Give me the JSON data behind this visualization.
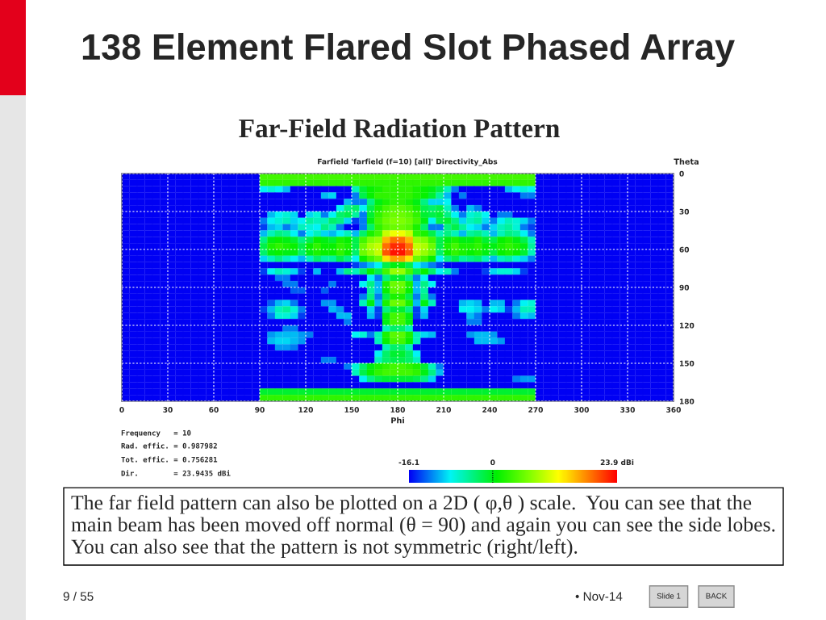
{
  "chart_data": {
    "type": "heatmap",
    "title": "138 Element Flared Slot Phased Array",
    "subtitle": "Far-Field Radiation Pattern",
    "xlabel": "Phi",
    "ylabel": "Theta",
    "annotations": [
      "Farfield 'farfield (f=10) [all]' Directivity_Abs",
      "Frequency   = 10",
      "Rad. effic. = 0.987982",
      "Tot. effic. = 0.756281",
      "Dir.        = 23.9435 dBi",
      "The far field pattern can also be plotted on a 2D ( φ,θ ) scale.  You can see that the\nmain beam has been moved off normal (θ = 90) and again you can see the side lobes.\nYou can also see that the pattern is not symmetric (right/left).",
      "9 / 55",
      "• Nov-14",
      "Slide 1",
      "BACK"
    ],
    "xlim": [
      0,
      360
    ],
    "xticks": [
      0,
      30,
      60,
      90,
      120,
      150,
      180,
      210,
      240,
      270,
      300,
      330,
      360
    ],
    "ylim": [
      180,
      0
    ],
    "yticks": [
      0,
      30,
      60,
      90,
      120,
      150,
      180
    ],
    "grid": true,
    "clim": [
      -16.1,
      23.9
    ],
    "cticks": [
      -16.1,
      0,
      {
        "value": 23.9,
        "label": "23.9 dBi"
      }
    ],
    "cells": [
      [
        -16,
        -16,
        -16,
        -16,
        -16,
        -16,
        -16,
        -16,
        -16,
        -16,
        -16,
        -16,
        -16,
        -16,
        -16,
        -16,
        -16,
        -16,
        4,
        4,
        4,
        4,
        4,
        4,
        4,
        4,
        4,
        4,
        4,
        4,
        4,
        4,
        4,
        4,
        4,
        4,
        4,
        4,
        4,
        4,
        4,
        4,
        4,
        4,
        4,
        4,
        4,
        4,
        4,
        4,
        4,
        4,
        4,
        4,
        -16,
        -16,
        -16,
        -16,
        -16,
        -16,
        -16,
        -16,
        -16,
        -16,
        -16,
        -16,
        -16,
        -16,
        -16,
        -16,
        -16,
        -16
      ],
      [
        -16,
        -16,
        -16,
        -16,
        -16,
        -16,
        -16,
        -16,
        -16,
        -16,
        -16,
        -16,
        -16,
        -16,
        -16,
        -16,
        -16,
        -16,
        3,
        3,
        3,
        3,
        3,
        3,
        3,
        3,
        3,
        3,
        3,
        3,
        3,
        3,
        3,
        3,
        3,
        3,
        3,
        3,
        3,
        3,
        3,
        3,
        3,
        3,
        3,
        3,
        3,
        3,
        3,
        3,
        3,
        3,
        3,
        3,
        -16,
        -16,
        -16,
        -16,
        -16,
        -16,
        -16,
        -16,
        -16,
        -16,
        -16,
        -16,
        -16,
        -16,
        -16,
        -16,
        -16,
        -16
      ],
      [
        -16,
        -16,
        -16,
        -16,
        -16,
        -16,
        -16,
        -16,
        -16,
        -16,
        -16,
        -16,
        -16,
        -16,
        -16,
        -16,
        -16,
        -16,
        -8,
        -7,
        -8,
        -10,
        -16,
        -16,
        -16,
        -16,
        -16,
        -16,
        -16,
        -16,
        -6,
        -1,
        1,
        2,
        3,
        3,
        3,
        3,
        2,
        1,
        0,
        -2,
        -6,
        -12,
        -16,
        -16,
        -16,
        -16,
        -16,
        -16,
        -10,
        -8,
        -7,
        -8,
        -16,
        -16,
        -16,
        -16,
        -16,
        -16,
        -16,
        -16,
        -16,
        -16,
        -16,
        -16,
        -16,
        -16,
        -16,
        -16,
        -16,
        -16
      ],
      [
        -16,
        -16,
        -16,
        -16,
        -16,
        -16,
        -16,
        -16,
        -16,
        -16,
        -16,
        -16,
        -16,
        -16,
        -16,
        -16,
        -16,
        -16,
        -16,
        -16,
        -16,
        -16,
        -16,
        -16,
        -16,
        -16,
        -10,
        -9,
        -16,
        -16,
        -12,
        -2,
        1,
        3,
        3,
        3,
        3,
        3,
        2,
        1,
        -1,
        -5,
        -10,
        -16,
        -12,
        -16,
        -16,
        -16,
        -16,
        -16,
        -16,
        -16,
        -12,
        -12,
        -16,
        -16,
        -16,
        -16,
        -16,
        -16,
        -16,
        -16,
        -16,
        -16,
        -16,
        -16,
        -16,
        -16,
        -16,
        -16,
        -16,
        -16
      ],
      [
        -16,
        -16,
        -16,
        -16,
        -16,
        -16,
        -16,
        -16,
        -16,
        -16,
        -16,
        -16,
        -16,
        -16,
        -16,
        -16,
        -16,
        -16,
        -16,
        -16,
        -16,
        -16,
        -16,
        -16,
        -16,
        -16,
        -16,
        -16,
        -16,
        -10,
        -12,
        -12,
        -4,
        0,
        2,
        3,
        3,
        2,
        0,
        -4,
        -9,
        -9,
        -8,
        -16,
        -16,
        -16,
        -16,
        -16,
        -16,
        -16,
        -16,
        -16,
        -16,
        -16,
        -16,
        -16,
        -16,
        -16,
        -16,
        -16,
        -16,
        -16,
        -16,
        -16,
        -16,
        -16,
        -16,
        -16,
        -16,
        -16,
        -16,
        -16
      ],
      [
        -16,
        -16,
        -16,
        -16,
        -16,
        -16,
        -16,
        -16,
        -16,
        -16,
        -16,
        -16,
        -16,
        -16,
        -16,
        -16,
        -16,
        -16,
        -16,
        -16,
        -16,
        -16,
        -16,
        -16,
        -16,
        -16,
        -16,
        -16,
        -8,
        -4,
        -3,
        -8,
        -2,
        2,
        4,
        5,
        5,
        4,
        2,
        -2,
        -3,
        -2,
        -6,
        -12,
        -16,
        -10,
        -12,
        -16,
        -16,
        -16,
        -16,
        -16,
        -16,
        -16,
        -16,
        -16,
        -16,
        -16,
        -16,
        -16,
        -16,
        -16,
        -16,
        -16,
        -16,
        -16,
        -16,
        -16,
        -16,
        -16,
        -16,
        -16
      ],
      [
        -16,
        -16,
        -16,
        -16,
        -16,
        -16,
        -16,
        -16,
        -16,
        -16,
        -16,
        -16,
        -16,
        -16,
        -16,
        -16,
        -16,
        -16,
        -16,
        -10,
        -8,
        -7,
        -9,
        -16,
        -9,
        -7,
        -12,
        -8,
        -3,
        -2,
        -5,
        -12,
        -1,
        3,
        5,
        6,
        6,
        5,
        3,
        -1,
        -2,
        -1,
        -4,
        -8,
        -12,
        -7,
        -6,
        -8,
        -16,
        -12,
        -12,
        -16,
        -16,
        -16,
        -16,
        -16,
        -16,
        -16,
        -16,
        -16,
        -16,
        -16,
        -16,
        -16,
        -16,
        -16,
        -16,
        -16,
        -16,
        -16,
        -16,
        -16
      ],
      [
        -16,
        -16,
        -16,
        -16,
        -16,
        -16,
        -16,
        -16,
        -16,
        -16,
        -16,
        -16,
        -16,
        -16,
        -16,
        -16,
        -16,
        -16,
        -12,
        -8,
        -7,
        -6,
        -9,
        -8,
        -5,
        -6,
        -6,
        -3,
        -4,
        -9,
        -14,
        -12,
        0,
        4,
        6,
        7,
        7,
        6,
        4,
        0,
        -8,
        -2,
        -1,
        -4,
        -9,
        -6,
        -5,
        -9,
        -12,
        -8,
        -6,
        -7,
        -9,
        -12,
        -16,
        -16,
        -16,
        -16,
        -16,
        -16,
        -16,
        -16,
        -16,
        -16,
        -16,
        -16,
        -16,
        -16,
        -16,
        -16,
        -16,
        -16
      ],
      [
        -16,
        -16,
        -16,
        -16,
        -16,
        -16,
        -16,
        -16,
        -16,
        -16,
        -16,
        -16,
        -16,
        -16,
        -16,
        -16,
        -16,
        -16,
        -14,
        -10,
        -9,
        -12,
        -10,
        -6,
        -7,
        -8,
        -4,
        -6,
        -12,
        -16,
        -16,
        -12,
        -3,
        3,
        5,
        6,
        6,
        5,
        2,
        -3,
        -12,
        -12,
        -4,
        -2,
        -5,
        -8,
        -9,
        -12,
        -9,
        -6,
        -5,
        -7,
        -12,
        -14,
        -16,
        -16,
        -16,
        -16,
        -16,
        -16,
        -16,
        -16,
        -16,
        -16,
        -16,
        -16,
        -16,
        -16,
        -16,
        -16,
        -16,
        -16
      ],
      [
        -16,
        -16,
        -16,
        -16,
        -16,
        -16,
        -16,
        -16,
        -16,
        -16,
        -16,
        -16,
        -16,
        -16,
        -16,
        -16,
        -16,
        -16,
        -10,
        -6,
        -4,
        -5,
        -8,
        -12,
        -8,
        -6,
        -9,
        -10,
        -8,
        -6,
        -10,
        -3,
        2,
        4,
        10,
        12,
        12,
        10,
        3,
        2,
        -2,
        -6,
        -4,
        -6,
        -10,
        -5,
        -4,
        -6,
        -10,
        -6,
        -4,
        -5,
        -8,
        -12,
        -16,
        -16,
        -16,
        -16,
        -16,
        -16,
        -16,
        -16,
        -16,
        -16,
        -16,
        -16,
        -16,
        -16,
        -16,
        -16,
        -16,
        -16
      ],
      [
        -16,
        -16,
        -16,
        -16,
        -16,
        -16,
        -16,
        -16,
        -16,
        -16,
        -16,
        -16,
        -16,
        -16,
        -16,
        -16,
        -16,
        -16,
        -4,
        0,
        1,
        0,
        -1,
        -4,
        -2,
        1,
        0,
        -1,
        2,
        1,
        -2,
        4,
        7,
        8,
        16,
        19,
        19,
        16,
        8,
        7,
        4,
        -2,
        0,
        2,
        0,
        0,
        2,
        -1,
        -2,
        1,
        2,
        0,
        -2,
        -6,
        -16,
        -16,
        -16,
        -16,
        -16,
        -16,
        -16,
        -16,
        -16,
        -16,
        -16,
        -16,
        -16,
        -16,
        -16,
        -16,
        -16,
        -16
      ],
      [
        -16,
        -16,
        -16,
        -16,
        -16,
        -16,
        -16,
        -16,
        -16,
        -16,
        -16,
        -16,
        -16,
        -16,
        -16,
        -16,
        -16,
        -16,
        -2,
        2,
        3,
        2,
        1,
        -2,
        1,
        3,
        1,
        1,
        3,
        2,
        -2,
        6,
        9,
        10,
        19,
        22,
        22,
        19,
        10,
        9,
        6,
        -2,
        2,
        4,
        2,
        2,
        3,
        1,
        0,
        2,
        3,
        2,
        0,
        -5,
        -16,
        -16,
        -16,
        -16,
        -16,
        -16,
        -16,
        -16,
        -16,
        -16,
        -16,
        -16,
        -16,
        -16,
        -16,
        -16,
        -16,
        -16
      ],
      [
        -16,
        -16,
        -16,
        -16,
        -16,
        -16,
        -16,
        -16,
        -16,
        -16,
        -16,
        -16,
        -16,
        -16,
        -16,
        -16,
        -16,
        -16,
        -3,
        0,
        1,
        0,
        0,
        -3,
        0,
        2,
        1,
        1,
        3,
        1,
        -3,
        6,
        8,
        10,
        20,
        23,
        23,
        20,
        10,
        8,
        6,
        -3,
        1,
        3,
        2,
        1,
        2,
        0,
        -2,
        1,
        2,
        1,
        -1,
        -6,
        -16,
        -16,
        -16,
        -16,
        -16,
        -16,
        -16,
        -16,
        -16,
        -16,
        -16,
        -16,
        -16,
        -16,
        -16,
        -16,
        -16,
        -16
      ],
      [
        -16,
        -16,
        -16,
        -16,
        -16,
        -16,
        -16,
        -16,
        -16,
        -16,
        -16,
        -16,
        -16,
        -16,
        -16,
        -16,
        -16,
        -16,
        -9,
        -6,
        -4,
        -6,
        -8,
        -10,
        -6,
        -3,
        -5,
        -5,
        -2,
        -4,
        -8,
        1,
        4,
        6,
        14,
        17,
        17,
        14,
        6,
        4,
        1,
        -8,
        -4,
        -2,
        -5,
        -4,
        -3,
        -6,
        -10,
        -6,
        -5,
        -7,
        -9,
        -12,
        -16,
        -16,
        -16,
        -16,
        -16,
        -16,
        -16,
        -16,
        -16,
        -16,
        -16,
        -16,
        -16,
        -16,
        -16,
        -16,
        -16,
        -16
      ],
      [
        -16,
        -16,
        -16,
        -16,
        -16,
        -16,
        -16,
        -16,
        -16,
        -16,
        -16,
        -16,
        -16,
        -16,
        -16,
        -16,
        -16,
        -16,
        -16,
        -16,
        -16,
        -16,
        -16,
        -16,
        -16,
        -16,
        -16,
        -16,
        -16,
        -16,
        -14,
        -12,
        -10,
        -8,
        -2,
        0,
        0,
        -2,
        -8,
        -10,
        -12,
        -14,
        -16,
        -16,
        -16,
        -16,
        -16,
        -16,
        -16,
        -16,
        -16,
        -16,
        -16,
        -16,
        -16,
        -16,
        -16,
        -16,
        -16,
        -16,
        -16,
        -16,
        -16,
        -16,
        -16,
        -16,
        -16,
        -16,
        -16,
        -16,
        -16,
        -16
      ],
      [
        -16,
        -16,
        -16,
        -16,
        -16,
        -16,
        -16,
        -16,
        -16,
        -16,
        -16,
        -16,
        -16,
        -16,
        -16,
        -16,
        -16,
        -16,
        -14,
        -8,
        -6,
        -7,
        -9,
        -14,
        -16,
        -10,
        -16,
        -16,
        -10,
        -4,
        -6,
        -3,
        1,
        -2,
        4,
        8,
        8,
        4,
        -2,
        1,
        -3,
        -8,
        -6,
        -12,
        -16,
        -16,
        -16,
        -14,
        -9,
        -7,
        -7,
        -9,
        -14,
        -16,
        -16,
        -16,
        -16,
        -16,
        -16,
        -16,
        -16,
        -16,
        -16,
        -16,
        -16,
        -16,
        -16,
        -16,
        -16,
        -16,
        -16,
        -16
      ],
      [
        -16,
        -16,
        -16,
        -16,
        -16,
        -16,
        -16,
        -16,
        -16,
        -16,
        -16,
        -16,
        -16,
        -16,
        -16,
        -16,
        -16,
        -16,
        -16,
        -16,
        -12,
        -12,
        -16,
        -16,
        -16,
        -16,
        -16,
        -16,
        -16,
        -16,
        -16,
        -16,
        -8,
        -12,
        -4,
        -1,
        -1,
        -4,
        -12,
        -8,
        -16,
        -16,
        -16,
        -16,
        -16,
        -16,
        -16,
        -16,
        -16,
        -16,
        -16,
        -16,
        -16,
        -16,
        -16,
        -16,
        -16,
        -16,
        -16,
        -16,
        -16,
        -16,
        -16,
        -16,
        -16,
        -16,
        -16,
        -16,
        -16,
        -16,
        -16,
        -16
      ],
      [
        -16,
        -16,
        -16,
        -16,
        -16,
        -16,
        -16,
        -16,
        -16,
        -16,
        -16,
        -16,
        -16,
        -16,
        -16,
        -16,
        -16,
        -16,
        -16,
        -16,
        -16,
        -12,
        -12,
        -16,
        -16,
        -16,
        -16,
        -12,
        -16,
        -16,
        -16,
        -8,
        -4,
        -10,
        2,
        6,
        6,
        2,
        -10,
        -4,
        -8,
        -16,
        -16,
        -16,
        -16,
        -16,
        -16,
        -16,
        -16,
        -16,
        -16,
        -16,
        -16,
        -16,
        -16,
        -16,
        -16,
        -16,
        -16,
        -16,
        -16,
        -16,
        -16,
        -16,
        -16,
        -16,
        -16,
        -16,
        -16,
        -16,
        -16,
        -16
      ],
      [
        -16,
        -16,
        -16,
        -16,
        -16,
        -16,
        -16,
        -16,
        -16,
        -16,
        -16,
        -16,
        -16,
        -16,
        -16,
        -16,
        -16,
        -16,
        -16,
        -16,
        -16,
        -16,
        -13,
        -13,
        -16,
        -16,
        -13,
        -16,
        -16,
        -16,
        -16,
        -16,
        -5,
        -10,
        1,
        5,
        5,
        1,
        -10,
        -5,
        -16,
        -16,
        -16,
        -16,
        -16,
        -16,
        -16,
        -16,
        -16,
        -16,
        -16,
        -16,
        -16,
        -16,
        -16,
        -16,
        -16,
        -16,
        -16,
        -16,
        -16,
        -16,
        -16,
        -16,
        -16,
        -16,
        -16,
        -16,
        -16,
        -16,
        -16,
        -16
      ],
      [
        -16,
        -16,
        -16,
        -16,
        -16,
        -16,
        -16,
        -16,
        -16,
        -16,
        -16,
        -16,
        -16,
        -16,
        -16,
        -16,
        -16,
        -16,
        -16,
        -16,
        -16,
        -16,
        -16,
        -16,
        -16,
        -16,
        -16,
        -16,
        -16,
        -16,
        -16,
        -12,
        -4,
        -12,
        -2,
        2,
        2,
        -2,
        -12,
        -4,
        -12,
        -16,
        -16,
        -16,
        -16,
        -16,
        -16,
        -16,
        -16,
        -16,
        -16,
        -16,
        -16,
        -16,
        -16,
        -16,
        -16,
        -16,
        -16,
        -16,
        -16,
        -16,
        -16,
        -16,
        -16,
        -16,
        -16,
        -16,
        -16,
        -16,
        -16,
        -16
      ],
      [
        -16,
        -16,
        -16,
        -16,
        -16,
        -16,
        -16,
        -16,
        -16,
        -16,
        -16,
        -16,
        -16,
        -16,
        -16,
        -16,
        -16,
        -16,
        -16,
        -13,
        -10,
        -9,
        -12,
        -16,
        -16,
        -16,
        -11,
        -11,
        -16,
        -16,
        -16,
        -6,
        0,
        -10,
        2,
        6,
        6,
        2,
        -10,
        0,
        -6,
        -16,
        -16,
        -16,
        -10,
        -9,
        -10,
        -16,
        -10,
        -10,
        -16,
        -12,
        -8,
        -7,
        -16,
        -16,
        -16,
        -16,
        -16,
        -16,
        -16,
        -16,
        -16,
        -16,
        -16,
        -16,
        -16,
        -16,
        -16,
        -16,
        -16,
        -16
      ],
      [
        -16,
        -16,
        -16,
        -16,
        -16,
        -16,
        -16,
        -16,
        -16,
        -16,
        -16,
        -16,
        -16,
        -16,
        -16,
        -16,
        -16,
        -16,
        -14,
        -10,
        -6,
        -5,
        -7,
        -12,
        -16,
        -16,
        -16,
        -10,
        -11,
        -16,
        -16,
        -16,
        -9,
        -14,
        -4,
        -1,
        -1,
        -4,
        -14,
        -9,
        -16,
        -16,
        -16,
        -16,
        -8,
        -8,
        -9,
        -12,
        -8,
        -9,
        -14,
        -10,
        -6,
        -6,
        -16,
        -16,
        -16,
        -16,
        -16,
        -16,
        -16,
        -16,
        -16,
        -16,
        -16,
        -16,
        -16,
        -16,
        -16,
        -16,
        -16,
        -16
      ],
      [
        -16,
        -16,
        -16,
        -16,
        -16,
        -16,
        -16,
        -16,
        -16,
        -16,
        -16,
        -16,
        -16,
        -16,
        -16,
        -16,
        -16,
        -16,
        -16,
        -12,
        -7,
        -7,
        -9,
        -14,
        -16,
        -16,
        -16,
        -16,
        -10,
        -10,
        -16,
        -16,
        -10,
        -14,
        0,
        4,
        4,
        0,
        -14,
        -10,
        -16,
        -16,
        -16,
        -16,
        -16,
        -10,
        -12,
        -16,
        -16,
        -16,
        -16,
        -12,
        -9,
        -10,
        -16,
        -16,
        -16,
        -16,
        -16,
        -16,
        -16,
        -16,
        -16,
        -16,
        -16,
        -16,
        -16,
        -16,
        -16,
        -16,
        -16,
        -16
      ],
      [
        -16,
        -16,
        -16,
        -16,
        -16,
        -16,
        -16,
        -16,
        -16,
        -16,
        -16,
        -16,
        -16,
        -16,
        -16,
        -16,
        -16,
        -16,
        -16,
        -16,
        -16,
        -16,
        -16,
        -16,
        -16,
        -16,
        -16,
        -16,
        -16,
        -12,
        -16,
        -16,
        -16,
        -16,
        0,
        4,
        4,
        0,
        -16,
        -16,
        -16,
        -16,
        -16,
        -16,
        -16,
        -12,
        -12,
        -16,
        -16,
        -16,
        -16,
        -16,
        -16,
        -16,
        -16,
        -16,
        -16,
        -16,
        -16,
        -16,
        -16,
        -16,
        -16,
        -16,
        -16,
        -16,
        -16,
        -16,
        -16,
        -16,
        -16,
        -16
      ],
      [
        -16,
        -16,
        -16,
        -16,
        -16,
        -16,
        -16,
        -16,
        -16,
        -16,
        -16,
        -16,
        -16,
        -16,
        -16,
        -16,
        -16,
        -16,
        -16,
        -16,
        -16,
        -12,
        -12,
        -16,
        -16,
        -16,
        -16,
        -16,
        -16,
        -16,
        -16,
        -16,
        -16,
        -16,
        -6,
        -3,
        -3,
        -6,
        -16,
        -16,
        -16,
        -16,
        -16,
        -16,
        -16,
        -16,
        -16,
        -16,
        -16,
        -16,
        -16,
        -16,
        -16,
        -16,
        -16,
        -16,
        -16,
        -16,
        -16,
        -16,
        -16,
        -16,
        -16,
        -16,
        -16,
        -16,
        -16,
        -16,
        -16,
        -16,
        -16,
        -16
      ],
      [
        -16,
        -16,
        -16,
        -16,
        -16,
        -16,
        -16,
        -16,
        -16,
        -16,
        -16,
        -16,
        -16,
        -16,
        -16,
        -16,
        -16,
        -16,
        -16,
        -11,
        -10,
        -10,
        -10,
        -11,
        -12,
        -16,
        -16,
        -16,
        -16,
        -16,
        -8,
        -7,
        -12,
        -6,
        2,
        5,
        5,
        2,
        -6,
        -9,
        -10,
        -16,
        -16,
        -16,
        -16,
        -11,
        -10,
        -10,
        -11,
        -16,
        -16,
        -16,
        -16,
        -16,
        -16,
        -16,
        -16,
        -16,
        -16,
        -16,
        -16,
        -16,
        -16,
        -16,
        -16,
        -16,
        -16,
        -16,
        -16,
        -16,
        -16,
        -16
      ],
      [
        -16,
        -16,
        -16,
        -16,
        -16,
        -16,
        -16,
        -16,
        -16,
        -16,
        -16,
        -16,
        -16,
        -16,
        -16,
        -16,
        -16,
        -16,
        -16,
        -10,
        -9,
        -9,
        -10,
        -11,
        -16,
        -16,
        -16,
        -16,
        -16,
        -16,
        -16,
        -16,
        -16,
        -6,
        1,
        4,
        4,
        1,
        -6,
        -16,
        -16,
        -16,
        -16,
        -16,
        -16,
        -16,
        -10,
        -10,
        -10,
        -11,
        -16,
        -16,
        -16,
        -16,
        -16,
        -16,
        -16,
        -16,
        -16,
        -16,
        -16,
        -16,
        -16,
        -16,
        -16,
        -16,
        -16,
        -16,
        -16,
        -16,
        -16,
        -16
      ],
      [
        -16,
        -16,
        -16,
        -16,
        -16,
        -16,
        -16,
        -16,
        -16,
        -16,
        -16,
        -16,
        -16,
        -16,
        -16,
        -16,
        -16,
        -16,
        -16,
        -16,
        -11,
        -11,
        -12,
        -16,
        -16,
        -16,
        -16,
        -16,
        -16,
        -16,
        -16,
        -16,
        -16,
        -16,
        -6,
        -3,
        -3,
        -6,
        -16,
        -16,
        -16,
        -16,
        -16,
        -16,
        -16,
        -16,
        -16,
        -16,
        -16,
        -16,
        -16,
        -16,
        -16,
        -16,
        -16,
        -16,
        -16,
        -16,
        -16,
        -16,
        -16,
        -16,
        -16,
        -16,
        -16,
        -16,
        -16,
        -16,
        -16,
        -16,
        -16,
        -16
      ],
      [
        -16,
        -16,
        -16,
        -16,
        -16,
        -16,
        -16,
        -16,
        -16,
        -16,
        -16,
        -16,
        -16,
        -16,
        -16,
        -16,
        -16,
        -16,
        -16,
        -16,
        -16,
        -16,
        -16,
        -16,
        -16,
        -16,
        -16,
        -16,
        -16,
        -16,
        -16,
        -16,
        -16,
        -8,
        -3,
        -1,
        -1,
        -3,
        -8,
        -16,
        -16,
        -16,
        -16,
        -16,
        -16,
        -16,
        -16,
        -16,
        -16,
        -16,
        -16,
        -16,
        -16,
        -16,
        -16,
        -16,
        -16,
        -16,
        -16,
        -16,
        -16,
        -16,
        -16,
        -16,
        -16,
        -16,
        -16,
        -16,
        -16,
        -16,
        -16,
        -16
      ],
      [
        -16,
        -16,
        -16,
        -16,
        -16,
        -16,
        -16,
        -16,
        -16,
        -16,
        -16,
        -16,
        -16,
        -16,
        -16,
        -16,
        -16,
        -16,
        -16,
        -16,
        -16,
        -16,
        -16,
        -16,
        -16,
        -16,
        -12,
        -12,
        -16,
        -16,
        -16,
        -16,
        -16,
        -6,
        -3,
        -2,
        -2,
        -3,
        -6,
        -16,
        -16,
        -16,
        -16,
        -16,
        -16,
        -16,
        -16,
        -16,
        -16,
        -16,
        -16,
        -16,
        -16,
        -16,
        -16,
        -16,
        -16,
        -16,
        -16,
        -16,
        -16,
        -16,
        -16,
        -16,
        -16,
        -16,
        -16,
        -16,
        -16,
        -16,
        -16,
        -16
      ],
      [
        -16,
        -16,
        -16,
        -16,
        -16,
        -16,
        -16,
        -16,
        -16,
        -16,
        -16,
        -16,
        -16,
        -16,
        -16,
        -16,
        -16,
        -16,
        -16,
        -16,
        -16,
        -16,
        -16,
        -16,
        -16,
        -16,
        -16,
        -16,
        -16,
        -12,
        -7,
        -3,
        0,
        2,
        3,
        4,
        4,
        3,
        2,
        -1,
        -6,
        -12,
        -16,
        -16,
        -16,
        -16,
        -16,
        -16,
        -16,
        -16,
        -16,
        -16,
        -16,
        -16,
        -16,
        -16,
        -16,
        -16,
        -16,
        -16,
        -16,
        -16,
        -16,
        -16,
        -16,
        -16,
        -16,
        -16,
        -16,
        -16,
        -16,
        -16
      ],
      [
        -16,
        -16,
        -16,
        -16,
        -16,
        -16,
        -16,
        -16,
        -16,
        -16,
        -16,
        -16,
        -16,
        -16,
        -16,
        -16,
        -16,
        -16,
        -16,
        -16,
        -16,
        -16,
        -16,
        -16,
        -16,
        -16,
        -16,
        -16,
        -16,
        -16,
        -6,
        -2,
        1,
        3,
        4,
        4,
        4,
        4,
        3,
        0,
        -4,
        -10,
        -16,
        -16,
        -16,
        -16,
        -16,
        -16,
        -16,
        -16,
        -16,
        -16,
        -16,
        -16,
        -16,
        -16,
        -16,
        -16,
        -16,
        -16,
        -16,
        -16,
        -16,
        -16,
        -16,
        -16,
        -16,
        -16,
        -16,
        -16,
        -16,
        -16
      ],
      [
        -16,
        -16,
        -16,
        -16,
        -16,
        -16,
        -16,
        -16,
        -16,
        -16,
        -16,
        -16,
        -16,
        -16,
        -16,
        -16,
        -16,
        -16,
        -16,
        -16,
        -16,
        -16,
        -16,
        -16,
        -16,
        -16,
        -16,
        -16,
        -16,
        -16,
        -16,
        -8,
        -4,
        -2,
        -1,
        -1,
        -1,
        -1,
        -2,
        -4,
        -9,
        -16,
        -16,
        -16,
        -16,
        -16,
        -16,
        -16,
        -16,
        -16,
        -16,
        -12,
        -11,
        -11,
        -16,
        -16,
        -16,
        -16,
        -16,
        -16,
        -16,
        -16,
        -16,
        -16,
        -16,
        -16,
        -16,
        -16,
        -16,
        -16,
        -16,
        -16
      ],
      [
        -16,
        -16,
        -16,
        -16,
        -16,
        -16,
        -16,
        -16,
        -16,
        -16,
        -16,
        -16,
        -16,
        -16,
        -16,
        -16,
        -16,
        -16,
        -16,
        -16,
        -16,
        -16,
        -16,
        -16,
        -16,
        -16,
        -16,
        -16,
        -16,
        -16,
        -16,
        -16,
        -16,
        -16,
        -16,
        -16,
        -16,
        -16,
        -16,
        -16,
        -16,
        -16,
        -16,
        -16,
        -16,
        -16,
        -16,
        -16,
        -16,
        -16,
        -16,
        -16,
        -16,
        -16,
        -16,
        -16,
        -16,
        -16,
        -16,
        -16,
        -16,
        -16,
        -16,
        -16,
        -16,
        -16,
        -16,
        -16,
        -16,
        -16,
        -16,
        -16
      ],
      [
        -16,
        -16,
        -16,
        -16,
        -16,
        -16,
        -16,
        -16,
        -16,
        -16,
        -16,
        -16,
        -16,
        -16,
        -16,
        -16,
        -16,
        -16,
        -1,
        -1,
        -1,
        -1,
        -1,
        -1,
        -1,
        -1,
        -1,
        -1,
        -1,
        -1,
        -1,
        -1,
        -1,
        -1,
        -1,
        -1,
        -1,
        -1,
        -1,
        -1,
        -1,
        -1,
        -1,
        -1,
        -1,
        -1,
        -1,
        -1,
        -1,
        -1,
        -1,
        -1,
        -1,
        -1,
        -16,
        -16,
        -16,
        -16,
        -16,
        -16,
        -16,
        -16,
        -16,
        -16,
        -16,
        -16,
        -16,
        -16,
        -16,
        -16,
        -16,
        -16
      ],
      [
        -16,
        -16,
        -16,
        -16,
        -16,
        -16,
        -16,
        -16,
        -16,
        -16,
        -16,
        -16,
        -16,
        -16,
        -16,
        -16,
        -16,
        -16,
        3,
        3,
        3,
        3,
        3,
        3,
        3,
        3,
        3,
        3,
        3,
        3,
        3,
        3,
        3,
        3,
        3,
        3,
        3,
        3,
        3,
        3,
        3,
        3,
        3,
        3,
        3,
        3,
        3,
        3,
        3,
        3,
        3,
        3,
        3,
        3,
        -16,
        -16,
        -16,
        -16,
        -16,
        -16,
        -16,
        -16,
        -16,
        -16,
        -16,
        -16,
        -16,
        -16,
        -16,
        -16,
        -16,
        -16
      ]
    ]
  }
}
